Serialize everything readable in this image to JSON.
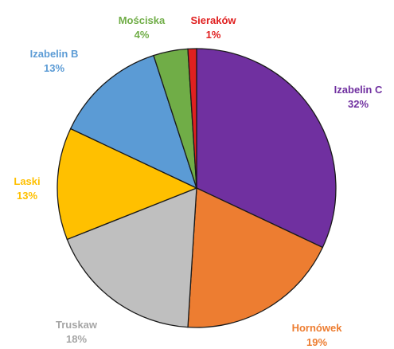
{
  "chart_data": {
    "type": "pie",
    "title": "",
    "slices": [
      {
        "label": "Izabelin C",
        "value": 32,
        "value_label": "32%",
        "color": "#7030A0"
      },
      {
        "label": "Hornówek",
        "value": 19,
        "value_label": "19%",
        "color": "#ED7D31"
      },
      {
        "label": "Truskaw",
        "value": 18,
        "value_label": "18%",
        "color": "#BFBFBF"
      },
      {
        "label": "Laski",
        "value": 13,
        "value_label": "13%",
        "color": "#FFC000"
      },
      {
        "label": "Izabelin B",
        "value": 13,
        "value_label": "13%",
        "color": "#5B9BD5"
      },
      {
        "label": "Mościska",
        "value": 4,
        "value_label": "4%",
        "color": "#70AD47"
      },
      {
        "label": "Sieraków",
        "value": 1,
        "value_label": "1%",
        "color": "#E02020"
      }
    ],
    "start_angle": "12 o'clock",
    "direction": "clockwise",
    "legend": "none",
    "data_labels": "outside"
  }
}
